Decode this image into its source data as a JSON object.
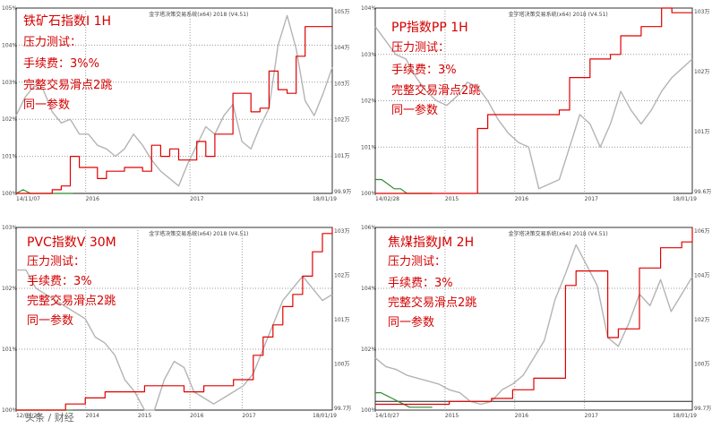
{
  "chart_data": [
    {
      "type": "line",
      "title": "铁矿石指数I 1H",
      "annotations": [
        "压力测试：",
        "手续费：3%%",
        "完整交易滑点2跳",
        "同一参数"
      ],
      "x_ticks": [
        "14/11/07",
        "2016",
        "2017",
        "18/01/19"
      ],
      "y_left_ticks": [
        "105%",
        "104%",
        "103%",
        "102%",
        "101%",
        "100%"
      ],
      "y_right_ticks": [
        "105万",
        "104万",
        "103万",
        "102万",
        "101万",
        "99.9万"
      ],
      "ylim": [
        100,
        105
      ],
      "series": [
        {
          "color": "#e00000",
          "values": [
            100.0,
            100.0,
            100.0,
            100.0,
            100.1,
            100.2,
            101.0,
            100.7,
            100.7,
            100.4,
            100.6,
            100.6,
            100.7,
            100.7,
            100.6,
            101.3,
            101.0,
            101.2,
            100.9,
            100.9,
            101.4,
            101.0,
            101.6,
            101.6,
            102.7,
            102.7,
            102.2,
            102.3,
            103.3,
            102.8,
            102.7,
            103.7,
            104.5,
            104.5,
            104.5,
            104.5
          ]
        },
        {
          "color": "#b4b4b4",
          "values": [
            102.1,
            102.6,
            102.9,
            102.8,
            102.2,
            101.9,
            102.0,
            101.6,
            101.6,
            101.3,
            101.2,
            101.0,
            101.2,
            101.6,
            101.3,
            100.9,
            100.6,
            100.4,
            100.2,
            100.8,
            101.3,
            101.8,
            101.6,
            102.1,
            102.4,
            101.4,
            101.2,
            101.8,
            102.3,
            104.0,
            104.8,
            103.9,
            102.5,
            102.1,
            102.7,
            103.4
          ]
        },
        {
          "color": "#2e8b2e",
          "values": [
            100.0,
            100.1,
            100.0,
            100.0,
            100.0,
            100.0,
            100.0,
            100.0,
            100.0
          ]
        }
      ]
    },
    {
      "type": "line",
      "title": "PP指数PP 1H",
      "annotations": [
        "压力测试：",
        "手续费：3%",
        "完整交易滑点2跳",
        "同一参数"
      ],
      "x_ticks": [
        "14/02/28",
        "2015",
        "2016",
        "2017",
        "18/01/19"
      ],
      "y_left_ticks": [
        "104%",
        "103%",
        "102%",
        "101%",
        "100%"
      ],
      "y_right_ticks": [
        "103万",
        "102万",
        "101万",
        "99.6万"
      ],
      "ylim": [
        100,
        104
      ],
      "series": [
        {
          "color": "#e00000",
          "values": [
            100.0,
            100.0,
            100.0,
            100.0,
            100.0,
            100.0,
            100.0,
            100.0,
            100.0,
            100.0,
            101.4,
            101.7,
            101.7,
            101.7,
            101.7,
            101.7,
            101.7,
            101.7,
            101.8,
            102.5,
            102.5,
            102.9,
            102.9,
            103.0,
            103.4,
            103.4,
            103.6,
            103.6,
            104.0,
            103.9,
            103.9,
            103.9
          ]
        },
        {
          "color": "#b4b4b4",
          "values": [
            103.6,
            103.3,
            103.0,
            102.9,
            102.5,
            102.2,
            102.0,
            101.9,
            102.1,
            102.4,
            102.3,
            102.0,
            101.6,
            101.3,
            101.1,
            101.0,
            100.1,
            100.2,
            100.3,
            101.0,
            101.7,
            101.5,
            101.0,
            101.5,
            102.2,
            101.8,
            101.5,
            101.8,
            102.2,
            102.5,
            102.7,
            102.9
          ]
        },
        {
          "color": "#2e8b2e",
          "values": [
            100.3,
            100.3,
            100.2,
            100.1,
            100.1,
            100.0,
            100.0,
            100.0,
            100.0,
            100.0
          ]
        }
      ]
    },
    {
      "type": "line",
      "title": "PVC指数V 30M",
      "annotations": [
        "压力测试：",
        "手续费：3%",
        "完整交易滑点2跳",
        "同一参数"
      ],
      "x_ticks": [
        "12/04/20",
        "2014",
        "2015",
        "2016",
        "2017",
        "18/01/19"
      ],
      "y_left_ticks": [
        "103%",
        "102%",
        "101%",
        "100%"
      ],
      "y_right_ticks": [
        "103万",
        "102万",
        "101万",
        "100万",
        "99.7万"
      ],
      "ylim": [
        100,
        103
      ],
      "series": [
        {
          "color": "#e00000",
          "values": [
            100.0,
            100.0,
            100.0,
            100.0,
            100.0,
            100.1,
            100.1,
            100.2,
            100.2,
            100.3,
            100.3,
            100.3,
            100.3,
            100.4,
            100.4,
            100.4,
            100.4,
            100.3,
            100.3,
            100.4,
            100.4,
            100.4,
            100.5,
            100.5,
            100.9,
            101.2,
            101.4,
            101.7,
            101.9,
            102.2,
            102.6,
            102.9,
            103.0
          ]
        },
        {
          "color": "#b4b4b4",
          "values": [
            102.3,
            102.3,
            102.0,
            101.9,
            101.8,
            101.7,
            101.6,
            101.5,
            101.2,
            101.1,
            100.9,
            100.5,
            100.3,
            100.0,
            100.0,
            100.5,
            100.8,
            100.7,
            100.3,
            100.2,
            100.1,
            100.2,
            100.3,
            100.4,
            100.6,
            101.0,
            101.4,
            101.8,
            102.0,
            102.2,
            102.0,
            101.8,
            101.9
          ]
        },
        {
          "color": "#2e8b2e",
          "values": [
            100.0,
            100.0,
            100.0,
            100.0,
            100.0,
            100.0,
            100.0,
            100.0
          ]
        }
      ]
    },
    {
      "type": "line",
      "title": "焦煤指数JM 2H",
      "annotations": [
        "压力测试：",
        "手续费：3%",
        "完整交易滑点2跳",
        "同一参数"
      ],
      "x_ticks": [
        "14/10/27",
        "2015",
        "2016",
        "2017",
        "18/01/19"
      ],
      "y_left_ticks": [
        "106%",
        "104%",
        "102%",
        "100%"
      ],
      "y_right_ticks": [
        "106万",
        "104万",
        "102万",
        "100万",
        "99.7万"
      ],
      "ylim": [
        99.7,
        106
      ],
      "series": [
        {
          "color": "#e00000",
          "values": [
            99.9,
            99.9,
            99.9,
            99.9,
            99.9,
            99.9,
            99.9,
            100.0,
            100.0,
            100.0,
            100.0,
            100.1,
            100.1,
            100.4,
            100.4,
            100.8,
            100.8,
            100.8,
            104.0,
            104.5,
            104.5,
            104.5,
            102.2,
            102.5,
            102.5,
            104.6,
            104.6,
            105.3,
            105.3,
            105.5,
            106.0
          ]
        },
        {
          "color": "#b4b4b4",
          "values": [
            101.5,
            101.2,
            101.1,
            100.9,
            100.8,
            100.7,
            100.6,
            100.4,
            100.3,
            100.0,
            99.9,
            100.0,
            100.4,
            100.6,
            100.9,
            101.5,
            102.1,
            103.5,
            104.4,
            105.4,
            104.7,
            104.0,
            102.2,
            101.9,
            102.7,
            103.7,
            103.3,
            104.2,
            103.1,
            103.7,
            104.3
          ]
        },
        {
          "color": "#2e8b2e",
          "values": [
            100.3,
            100.3,
            100.2,
            100.1,
            100.0,
            99.9,
            99.8,
            99.8,
            99.8,
            99.8,
            99.8
          ]
        }
      ]
    }
  ],
  "watermark": "头条 / 财经",
  "plot_header": "金字塔决策交易系统(x64) 2018 (V4.51)"
}
